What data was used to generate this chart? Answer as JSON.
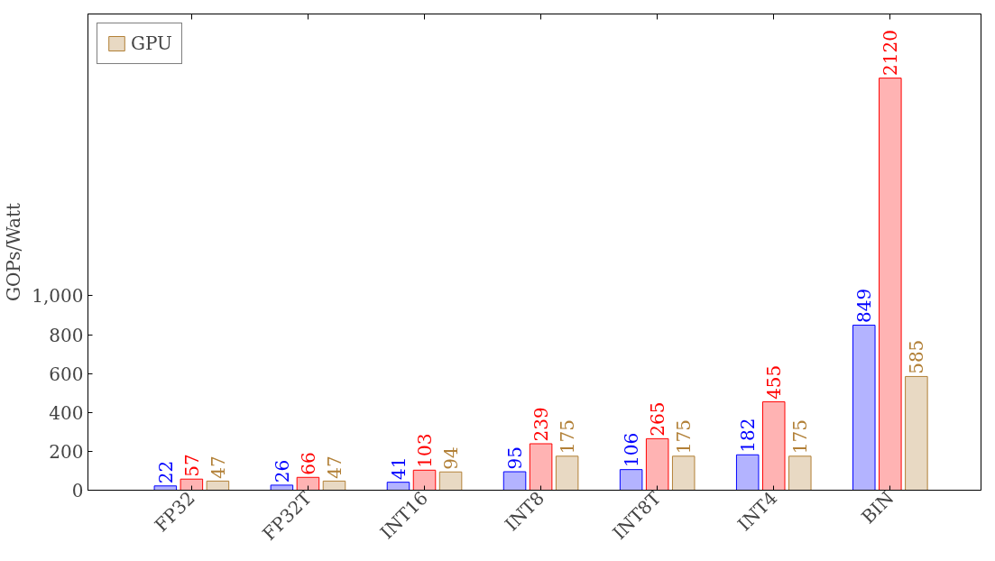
{
  "chart_data": {
    "type": "bar",
    "ylabel": "GOPs/Watt",
    "categories": [
      "FP32",
      "FP32T",
      "INT16",
      "INT8",
      "INT8T",
      "INT4",
      "BIN"
    ],
    "series": [
      {
        "color": "#b3b3ff",
        "values": [
          22,
          26,
          41,
          95,
          106,
          182,
          849
        ]
      },
      {
        "color": "#ffb3b3",
        "values": [
          57,
          66,
          103,
          239,
          265,
          455,
          2120
        ]
      },
      {
        "name": "GPU",
        "color": "#e8d9c3",
        "values": [
          47,
          47,
          94,
          175,
          175,
          175,
          585
        ]
      }
    ],
    "ylim": [
      0,
      2450
    ],
    "yticks": [
      0,
      200,
      400,
      600,
      800,
      {
        "value": 1000,
        "label": "1,000"
      }
    ],
    "grid": false,
    "legend": "top left",
    "data_labels": true
  }
}
